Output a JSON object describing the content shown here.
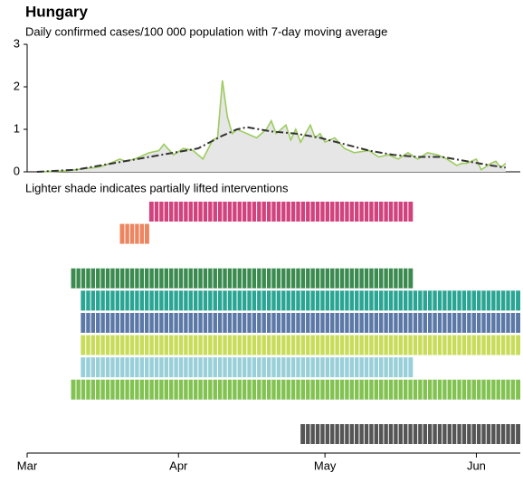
{
  "chart_data": {
    "type": "line",
    "title": "Hungary",
    "subtitle": "Daily confirmed cases/100 000 population with 7-day moving average",
    "note": "Lighter shade indicates partially lifted interventions",
    "xlim": [
      0,
      101
    ],
    "xticks": [
      {
        "value": 0,
        "label": "Mar"
      },
      {
        "value": 31,
        "label": "Apr"
      },
      {
        "value": 61,
        "label": "May"
      },
      {
        "value": 92,
        "label": "Jun"
      }
    ],
    "ylim": [
      0,
      3
    ],
    "yticks": [
      0,
      1,
      2,
      3
    ],
    "series": [
      {
        "color": "#9ccc5e",
        "fill": "#e6e6e6",
        "dash": false,
        "x": [
          2,
          5,
          8,
          10,
          12,
          14,
          15,
          17,
          19,
          20,
          22,
          24,
          25,
          27,
          28,
          30,
          32,
          34,
          36,
          38,
          39,
          40,
          41,
          42,
          43,
          45,
          47,
          49,
          50,
          51,
          53,
          54,
          55,
          56,
          58,
          59,
          60,
          61,
          63,
          65,
          67,
          70,
          72,
          74,
          76,
          78,
          80,
          82,
          84,
          86,
          88,
          89,
          90,
          92,
          93,
          95,
          96,
          97,
          98
        ],
        "values": [
          0,
          0.01,
          0.02,
          0.05,
          0.08,
          0.1,
          0.12,
          0.2,
          0.3,
          0.25,
          0.3,
          0.4,
          0.45,
          0.5,
          0.65,
          0.4,
          0.55,
          0.5,
          0.3,
          0.75,
          0.8,
          2.15,
          1.3,
          0.9,
          1.0,
          0.9,
          0.8,
          1.0,
          1.2,
          0.9,
          1.1,
          0.75,
          1.0,
          0.7,
          1.1,
          0.8,
          0.9,
          0.7,
          0.8,
          0.55,
          0.45,
          0.5,
          0.35,
          0.4,
          0.3,
          0.45,
          0.3,
          0.45,
          0.4,
          0.3,
          0.15,
          0.2,
          0.2,
          0.3,
          0.05,
          0.2,
          0.25,
          0.1,
          0.2
        ]
      },
      {
        "color": "#333333",
        "dash": true,
        "x": [
          2,
          10,
          20,
          25,
          30,
          35,
          40,
          43,
          45,
          50,
          55,
          60,
          65,
          70,
          75,
          80,
          85,
          90,
          95,
          98
        ],
        "values": [
          0,
          0.05,
          0.25,
          0.35,
          0.45,
          0.55,
          0.85,
          1.0,
          1.05,
          0.95,
          0.9,
          0.8,
          0.65,
          0.5,
          0.4,
          0.35,
          0.35,
          0.25,
          0.15,
          0.1
        ]
      }
    ],
    "interventions": [
      {
        "start": 25,
        "end": 79,
        "color": "#d1437e"
      },
      {
        "start": 19,
        "end": 25,
        "color": "#ec8560"
      },
      null,
      {
        "start": 9,
        "end": 79,
        "color": "#3b8a4f"
      },
      {
        "start": 11,
        "end": 101,
        "color": "#2aa593"
      },
      {
        "start": 11,
        "end": 101,
        "color": "#5b78a6"
      },
      {
        "start": 11,
        "end": 101,
        "color": "#c9dc5a"
      },
      {
        "start": 11,
        "end": 79,
        "color": "#99cfd9"
      },
      {
        "start": 9,
        "end": 101,
        "color": "#82c251"
      },
      null,
      {
        "start": 56,
        "end": 101,
        "color": "#555555"
      }
    ]
  }
}
